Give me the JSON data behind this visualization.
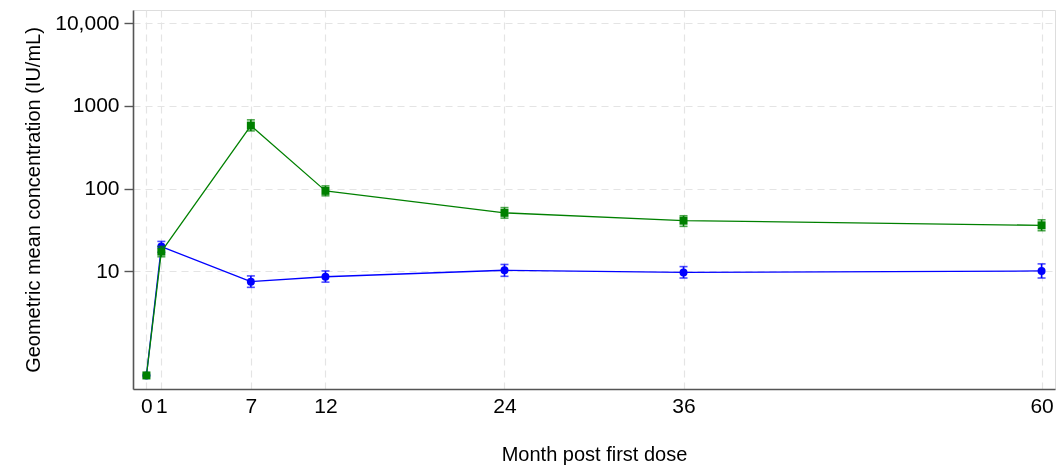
{
  "chart_data": {
    "type": "line",
    "xlabel": "Month post first dose",
    "ylabel": "Geometric mean concentration (IU/mL)",
    "x": [
      0,
      1,
      7,
      12,
      24,
      36,
      60
    ],
    "xlim": [
      -0.9,
      60.9
    ],
    "xticks": [
      0,
      1,
      7,
      12,
      24,
      36,
      60
    ],
    "ylim": [
      0.377,
      14500
    ],
    "yticks": [
      10,
      100,
      1000,
      {
        "value": 10000,
        "label": "10,000"
      }
    ],
    "log": "y",
    "grid": true,
    "line_style": "solid",
    "series": [
      {
        "color": "#0000ff",
        "marker": "circle",
        "values": [
          0.55,
          19.9,
          7.5,
          8.6,
          10.3,
          9.7,
          10.1
        ],
        "errors": [
          null,
          [
            17,
            23
          ],
          [
            6.4,
            8.8
          ],
          [
            7.4,
            10.1
          ],
          [
            8.7,
            12.1
          ],
          [
            8.3,
            11.4
          ],
          [
            8.3,
            12.3
          ]
        ]
      },
      {
        "color": "#008000",
        "marker": "square",
        "values": [
          0.55,
          17.3,
          580,
          94,
          51,
          41,
          36
        ],
        "errors": [
          null,
          [
            15,
            20
          ],
          [
            500,
            680
          ],
          [
            82,
            108
          ],
          [
            44,
            59
          ],
          [
            35,
            47
          ],
          [
            31,
            42
          ]
        ]
      }
    ]
  }
}
